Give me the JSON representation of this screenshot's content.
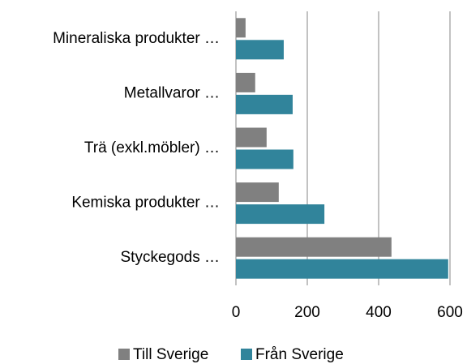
{
  "chart_data": {
    "type": "hbar",
    "categories": [
      "Mineraliska produkter …",
      "Metallvaror …",
      "Trä (exkl.möbler) …",
      "Kemiska produkter …",
      "Styckegods …"
    ],
    "series": [
      {
        "name": "Till Sverige",
        "color": "#808080",
        "values": [
          27,
          54,
          86,
          120,
          436
        ]
      },
      {
        "name": "Från Sverige",
        "color": "#31849b",
        "values": [
          134,
          159,
          161,
          248,
          595
        ]
      }
    ],
    "xlim": [
      0,
      600
    ],
    "xticks": [
      0,
      200,
      400,
      600
    ],
    "grid": true,
    "legend": "bottom"
  }
}
